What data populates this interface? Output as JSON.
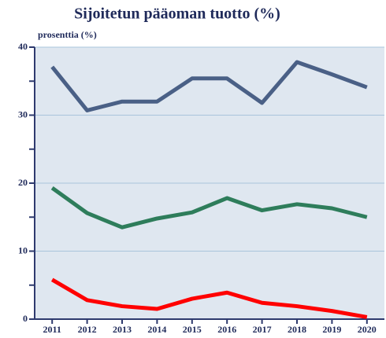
{
  "chart_data": {
    "type": "line",
    "title": "Sijoitetun pääoman tuotto (%)",
    "y_label": "prosenttia (%)",
    "categories": [
      "2011",
      "2012",
      "2013",
      "2014",
      "2015",
      "2016",
      "2017",
      "2018",
      "2019",
      "2020"
    ],
    "series": [
      {
        "color": "#4a6086",
        "values": [
          37.1,
          30.7,
          32.0,
          32.0,
          35.4,
          35.4,
          31.8,
          37.8,
          36.0,
          34.1
        ]
      },
      {
        "color": "#2e7d5b",
        "values": [
          19.3,
          15.6,
          13.5,
          14.8,
          15.7,
          17.8,
          16.0,
          16.9,
          16.3,
          15.0
        ]
      },
      {
        "color": "#ff0000",
        "values": [
          5.8,
          2.8,
          1.9,
          1.5,
          3.0,
          3.9,
          2.4,
          1.9,
          1.2,
          0.3
        ]
      }
    ],
    "ylim": [
      0,
      40
    ],
    "yticks": [
      0,
      10,
      20,
      30,
      40
    ],
    "yminorticks": [
      5,
      15,
      25,
      35
    ],
    "grid": true
  }
}
